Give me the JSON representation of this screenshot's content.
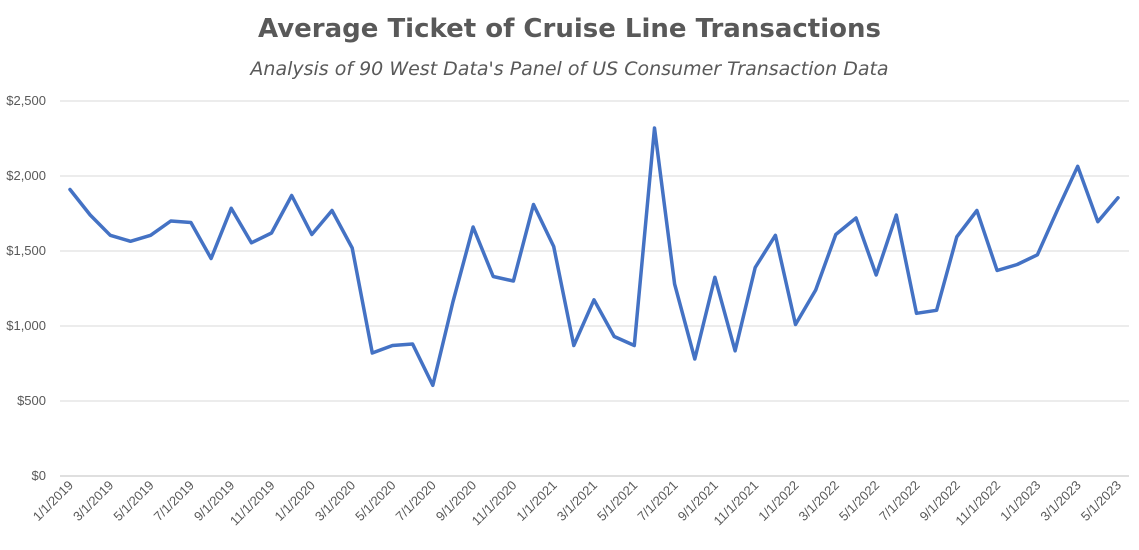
{
  "chart_data": {
    "type": "line",
    "title": "Average Ticket of Cruise Line Transactions",
    "subtitle": "Analysis of 90 West Data's Panel of US Consumer Transaction Data",
    "xlabel": "",
    "ylabel": "",
    "ylim": [
      0,
      2500
    ],
    "yticks": [
      0,
      500,
      1000,
      1500,
      2000,
      2500
    ],
    "ytick_labels": [
      "$0",
      "$500",
      "$1,000",
      "$1,500",
      "$2,000",
      "$2,500"
    ],
    "grid": true,
    "line_color": "#4472c4",
    "x_tick_labels": [
      "1/1/2019",
      "3/1/2019",
      "5/1/2019",
      "7/1/2019",
      "9/1/2019",
      "11/1/2019",
      "1/1/2020",
      "3/1/2020",
      "5/1/2020",
      "7/1/2020",
      "9/1/2020",
      "11/1/2020",
      "1/1/2021",
      "3/1/2021",
      "5/1/2021",
      "7/1/2021",
      "9/1/2021",
      "11/1/2021",
      "1/1/2022",
      "3/1/2022",
      "5/1/2022",
      "7/1/2022",
      "9/1/2022",
      "11/1/2022",
      "1/1/2023",
      "3/1/2023",
      "5/1/2023"
    ],
    "series": [
      {
        "name": "Average Ticket",
        "values": [
          1910,
          1740,
          1605,
          1565,
          1605,
          1700,
          1690,
          1450,
          1785,
          1555,
          1620,
          1870,
          1610,
          1770,
          1520,
          820,
          870,
          880,
          605,
          1160,
          1660,
          1330,
          1300,
          1810,
          1530,
          870,
          1175,
          930,
          870,
          2320,
          1280,
          780,
          1325,
          835,
          1390,
          1605,
          1010,
          1240,
          1610,
          1720,
          1340,
          1740,
          1085,
          1105,
          1595,
          1770,
          1370,
          1410,
          1475,
          1775,
          2065,
          1695,
          1855
        ]
      }
    ]
  }
}
